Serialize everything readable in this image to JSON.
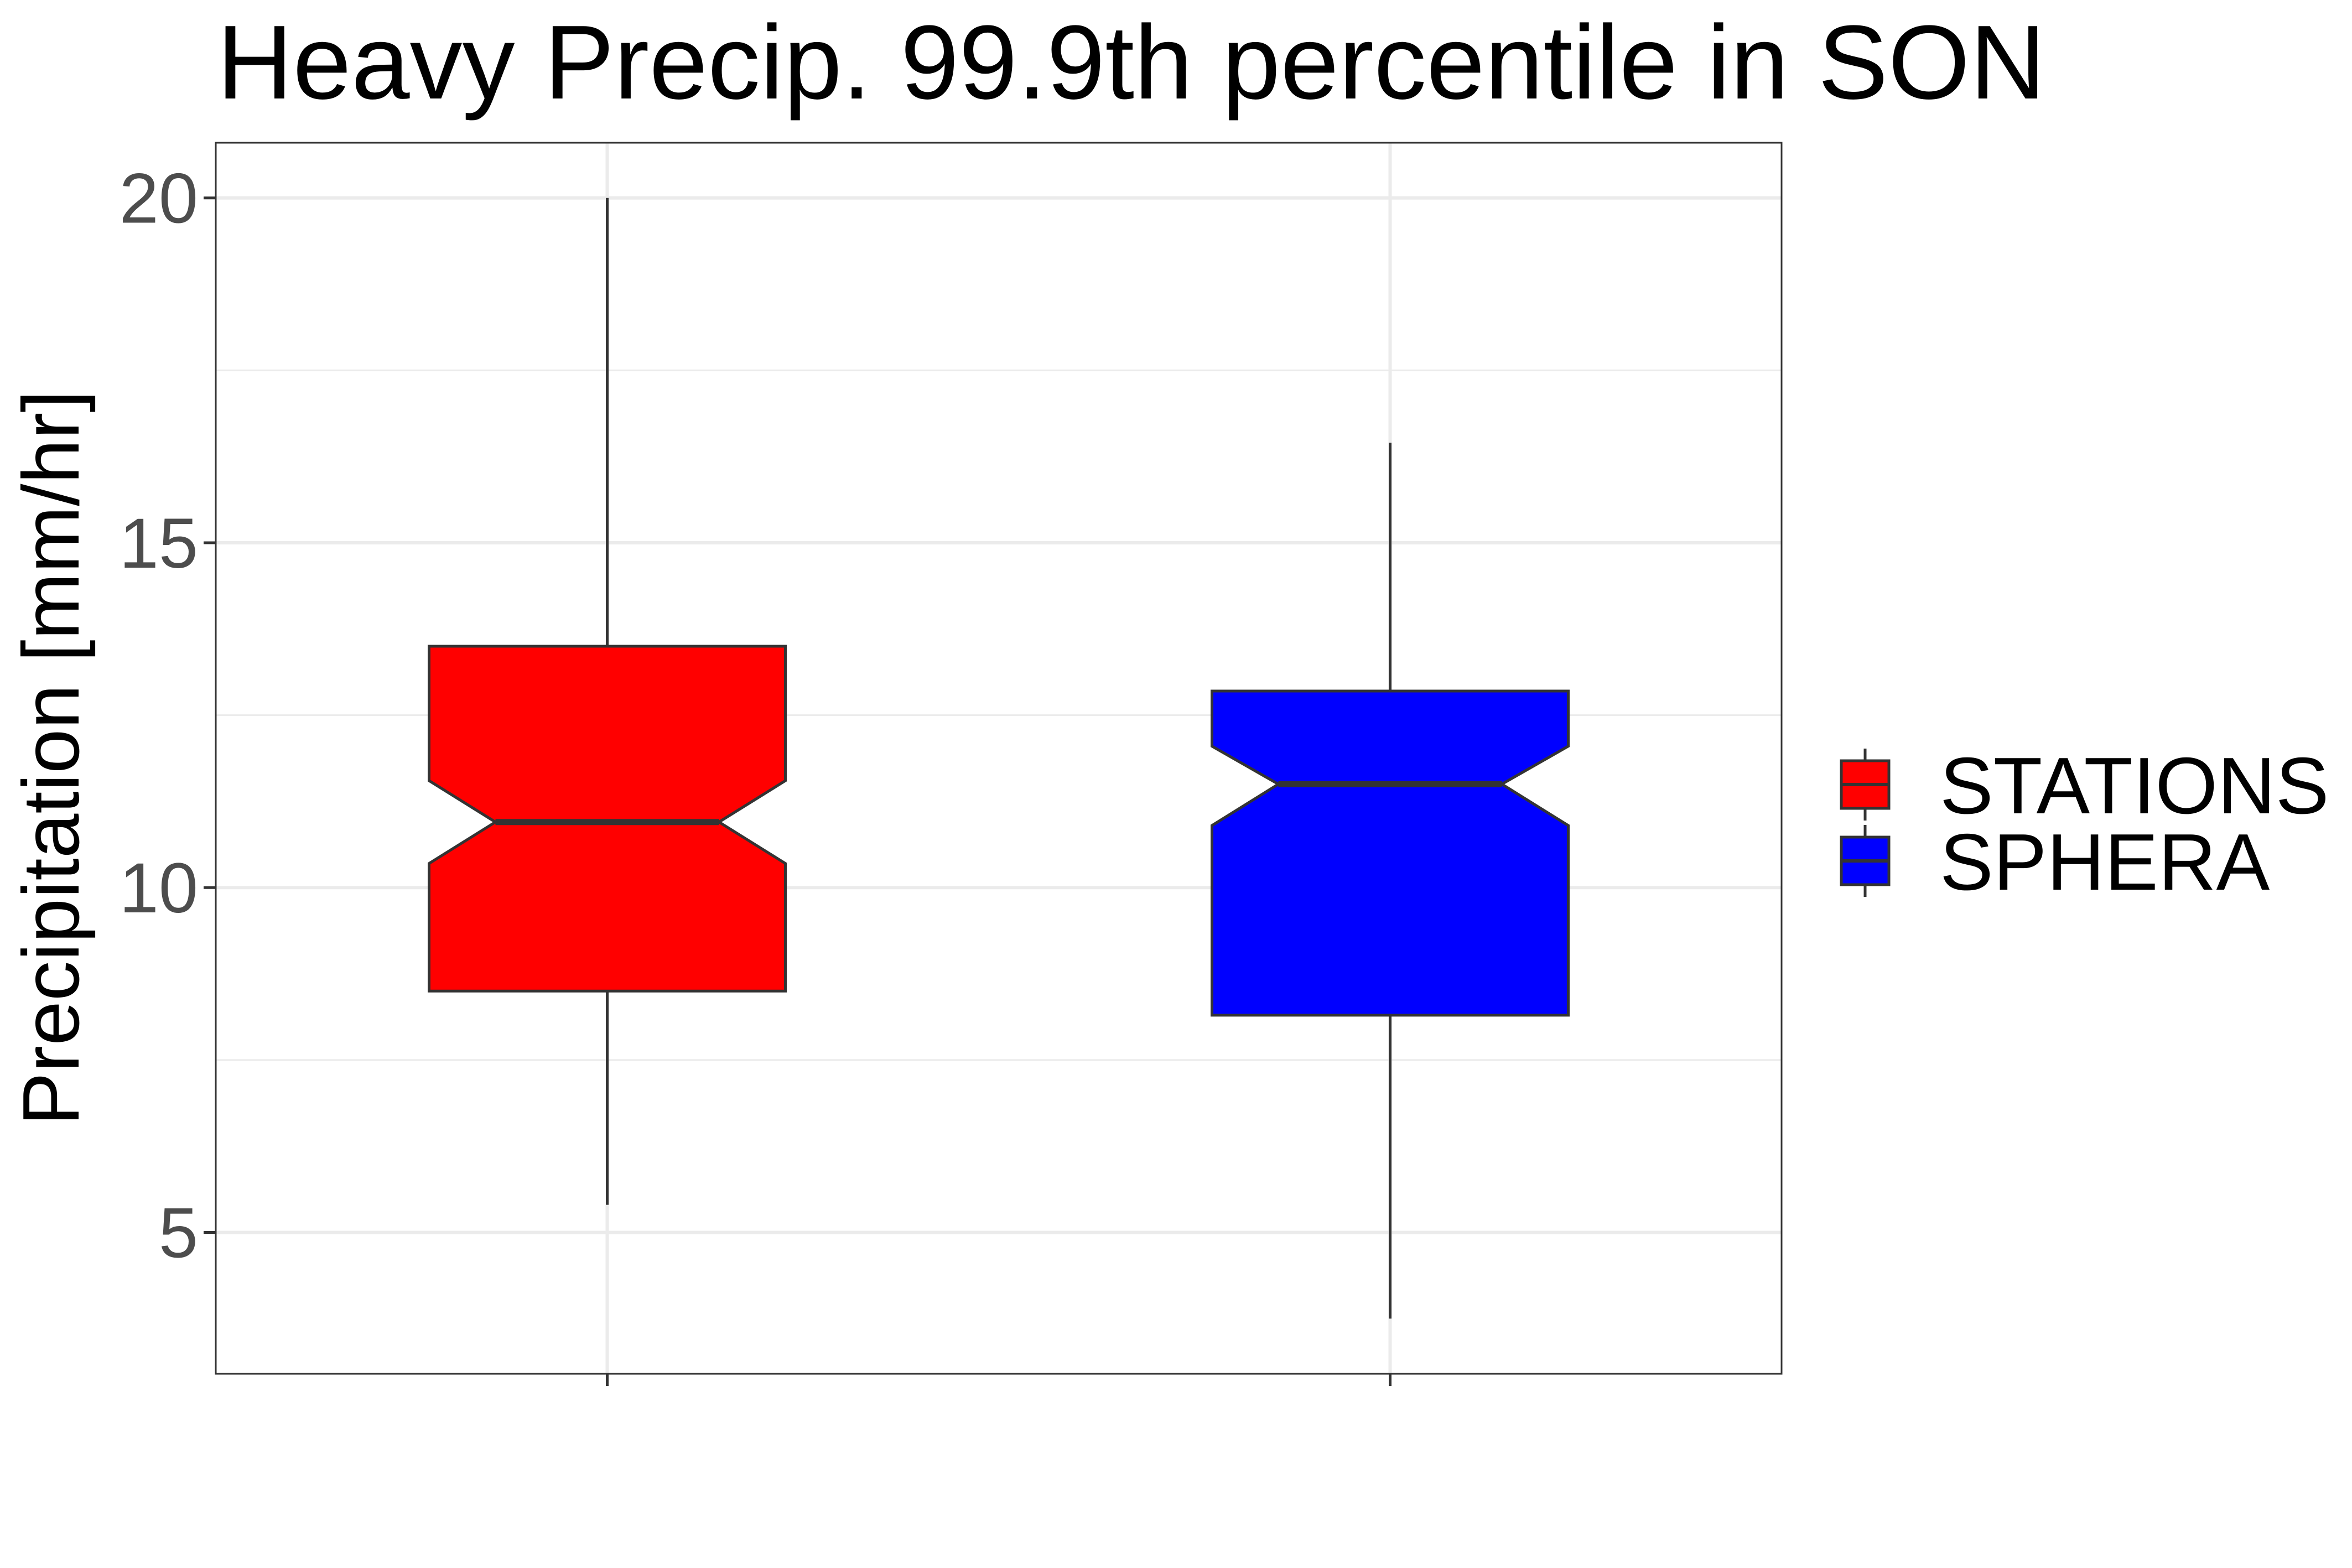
{
  "chart_data": {
    "type": "boxplot",
    "title": "Heavy Precip. 99.9th percentile in SON",
    "xlabel": "",
    "ylabel": "Precipitation [mm/hr]",
    "ylim": [
      2.95,
      20.8
    ],
    "yticks": [
      5,
      10,
      15,
      20
    ],
    "grid": true,
    "legend_position": "right",
    "series": [
      {
        "name": "STATIONS",
        "color": "#ff0000",
        "whisker_low": 5.4,
        "q1": 8.5,
        "median": 10.95,
        "q3": 13.5,
        "whisker_high": 20.0,
        "notch_low": 10.35,
        "notch_high": 11.55
      },
      {
        "name": "SPHERA",
        "color": "#0000ff",
        "whisker_low": 3.75,
        "q1": 8.15,
        "median": 11.5,
        "q3": 12.85,
        "whisker_high": 16.45,
        "notch_low": 10.9,
        "notch_high": 12.05
      }
    ]
  }
}
